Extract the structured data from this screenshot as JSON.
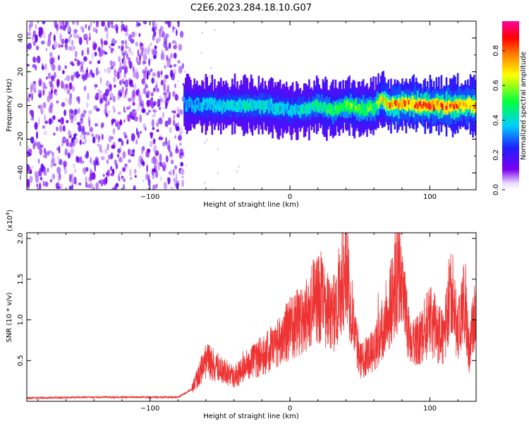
{
  "title": "C2E6.2023.284.18.10.G07",
  "chart_data": [
    {
      "type": "heatmap",
      "xlabel": "Height of straight line (km)",
      "ylabel": "Frequency (Hz)",
      "xlim": [
        -188,
        133
      ],
      "ylim": [
        -50,
        50
      ],
      "xticks": [
        -100,
        0,
        100
      ],
      "yticks": [
        -40,
        -20,
        0,
        20,
        40
      ],
      "grid": false,
      "colorbar": {
        "label": "Normalized spectral amplitude",
        "range": [
          0,
          0.97
        ],
        "ticks": [
          "0.0",
          "0.2",
          "0.4",
          "0.6",
          "0.8"
        ],
        "colormap": [
          "#ffffff",
          "#7b00f0",
          "#2020ff",
          "#00d0ff",
          "#00ff40",
          "#ffff00",
          "#ff8000",
          "#ff0000",
          "#ff00a0"
        ]
      },
      "noise_region_x": [
        -188,
        -76
      ],
      "signal": {
        "x": [
          -76,
          -60,
          -40,
          -20,
          0,
          10,
          20,
          30,
          40,
          50,
          60,
          65,
          70,
          80,
          100,
          120,
          133
        ],
        "center_freq": [
          1,
          0,
          0,
          0,
          -3,
          -2,
          0,
          -3,
          0,
          -2,
          -1,
          4,
          0,
          1,
          0,
          0,
          0
        ],
        "peak_amplitude": [
          0.35,
          0.4,
          0.42,
          0.45,
          0.4,
          0.45,
          0.5,
          0.55,
          0.6,
          0.6,
          0.55,
          0.7,
          0.8,
          0.85,
          0.9,
          0.88,
          0.85
        ]
      }
    },
    {
      "type": "line",
      "xlabel": "Height of straight line (km)",
      "ylabel": "SNR (10 * v/v)",
      "y_multiplier": "(x10",
      "y_multiplier_exp": "4",
      "y_multiplier_close": ")",
      "xlim": [
        -188,
        133
      ],
      "ylim": [
        0,
        2.07
      ],
      "xticks": [
        -100,
        0,
        100
      ],
      "yticks": [
        "0.5",
        "1.0",
        "1.5",
        "2.0"
      ],
      "grid": false,
      "color": "#ee3333",
      "series": [
        {
          "x": [
            -188,
            -150,
            -100,
            -80,
            -70,
            -60,
            -50,
            -40,
            -30,
            -20,
            -10,
            0,
            10,
            20,
            30,
            40,
            50,
            60,
            70,
            78,
            85,
            90,
            100,
            110,
            115,
            120,
            125,
            128,
            133
          ],
          "values": [
            0.04,
            0.05,
            0.05,
            0.05,
            0.15,
            0.5,
            0.4,
            0.3,
            0.45,
            0.55,
            0.7,
            0.9,
            1.05,
            1.3,
            1.0,
            1.65,
            0.5,
            0.6,
            1.1,
            1.55,
            0.8,
            0.7,
            1.0,
            0.75,
            1.45,
            0.85,
            1.3,
            0.6,
            1.2
          ]
        }
      ]
    }
  ]
}
